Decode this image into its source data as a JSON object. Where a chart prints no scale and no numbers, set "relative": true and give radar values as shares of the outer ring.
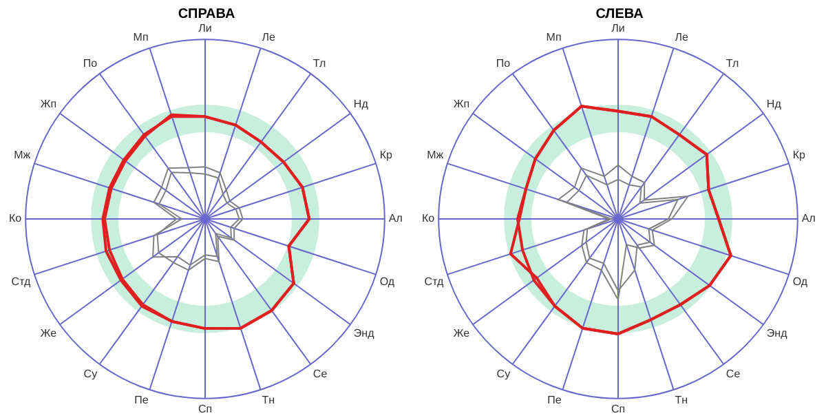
{
  "chart_data": [
    {
      "type": "radar",
      "title": "СПРАВА",
      "relative": true,
      "grid": true,
      "legend": false,
      "marker": "none",
      "categories": [
        "Ли",
        "Ле",
        "Тл",
        "Нд",
        "Кр",
        "Ал",
        "Од",
        "Энд",
        "Се",
        "Тн",
        "Сп",
        "Пе",
        "Су",
        "Же",
        "Стд",
        "Ко",
        "Мж",
        "Жп",
        "По",
        "Мп"
      ],
      "series": [
        {
          "color": "#808080",
          "values": [
            0.29,
            0.27,
            0.2,
            0.17,
            0.2,
            0.21,
            0.17,
            0.2,
            0.12,
            0.25,
            0.22,
            0.3,
            0.3,
            0.32,
            0.28,
            0.16,
            0.3,
            0.3,
            0.35,
            0.3
          ]
        },
        {
          "color": "#808080",
          "values": [
            0.25,
            0.24,
            0.17,
            0.15,
            0.18,
            0.19,
            0.15,
            0.18,
            0.1,
            0.22,
            0.2,
            0.27,
            0.26,
            0.36,
            0.3,
            0.13,
            0.27,
            0.27,
            0.32,
            0.27
          ]
        },
        {
          "color": "#e02020",
          "values": [
            0.57,
            0.55,
            0.53,
            0.54,
            0.57,
            0.58,
            0.49,
            0.61,
            0.63,
            0.64,
            0.61,
            0.6,
            0.6,
            0.58,
            0.58,
            0.57,
            0.56,
            0.56,
            0.58,
            0.6
          ]
        },
        {
          "color": "#e02020",
          "values": [
            0.57,
            0.55,
            0.53,
            0.54,
            0.57,
            0.58,
            0.49,
            0.61,
            0.63,
            0.64,
            0.61,
            0.6,
            0.59,
            0.57,
            0.56,
            0.56,
            0.55,
            0.55,
            0.57,
            0.61
          ]
        }
      ]
    },
    {
      "type": "radar",
      "title": "СЛЕВА",
      "relative": true,
      "grid": true,
      "legend": false,
      "marker": "none",
      "categories": [
        "Ли",
        "Ле",
        "Тл",
        "Нд",
        "Кр",
        "Ал",
        "Од",
        "Энд",
        "Се",
        "Тн",
        "Сп",
        "Пе",
        "Су",
        "Же",
        "Стд",
        "Ко",
        "Мж",
        "Жп",
        "По",
        "Мп"
      ],
      "series": [
        {
          "color": "#808080",
          "values": [
            0.3,
            0.25,
            0.25,
            0.18,
            0.41,
            0.3,
            0.2,
            0.25,
            0.2,
            0.15,
            0.45,
            0.3,
            0.3,
            0.25,
            0.2,
            0.05,
            0.35,
            0.3,
            0.35,
            0.25
          ]
        },
        {
          "color": "#808080",
          "values": [
            0.22,
            0.2,
            0.22,
            0.15,
            0.35,
            0.28,
            0.18,
            0.22,
            0.18,
            0.3,
            0.4,
            0.26,
            0.27,
            0.22,
            0.18,
            0.04,
            0.3,
            0.27,
            0.3,
            0.2
          ]
        },
        {
          "color": "#e02020",
          "values": [
            0.6,
            0.6,
            0.58,
            0.61,
            0.53,
            0.56,
            0.66,
            0.63,
            0.59,
            0.59,
            0.64,
            0.64,
            0.6,
            0.56,
            0.63,
            0.55,
            0.54,
            0.57,
            0.61,
            0.66
          ]
        },
        {
          "color": "#e02020",
          "values": [
            0.6,
            0.6,
            0.58,
            0.61,
            0.53,
            0.56,
            0.66,
            0.63,
            0.59,
            0.59,
            0.64,
            0.64,
            0.6,
            0.58,
            0.56,
            0.56,
            0.54,
            0.57,
            0.61,
            0.66
          ]
        }
      ]
    }
  ]
}
